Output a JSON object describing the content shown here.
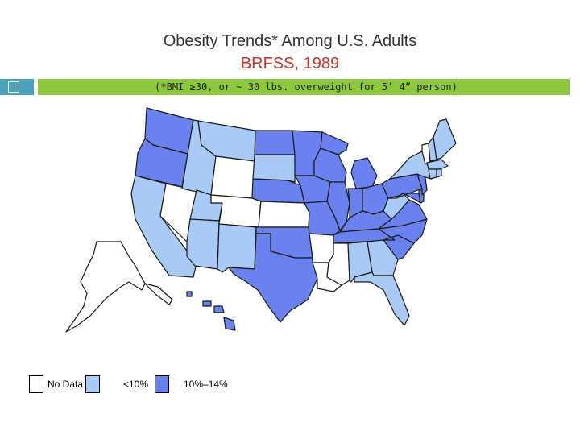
{
  "title": "Obesity Trends* Among U.S. Adults",
  "subtitle": "BRFSS, 1989",
  "footnote": "(*BMI ≥30, or ~ 30 lbs. overweight for 5’ 4” person)",
  "legend": [
    {
      "label": "No Data",
      "color": "#ffffff"
    },
    {
      "label": "<10%",
      "color": "#a8caf4"
    },
    {
      "label": "10%–14%",
      "color": "#6a82ee"
    }
  ],
  "colors": {
    "no_data": "#ffffff",
    "under_10": "#a8caf4",
    "10_14": "#6a82ee",
    "title_text": "#333333",
    "subtitle_text": "#c0392b",
    "bar_teal": "#4aa3b8",
    "bar_green": "#8dc63f"
  },
  "states": {
    "WA": "10_14",
    "OR": "10_14",
    "CA": "under_10",
    "NV": "no_data",
    "ID": "under_10",
    "MT": "under_10",
    "WY": "no_data",
    "UT": "under_10",
    "AZ": "under_10",
    "CO": "no_data",
    "NM": "under_10",
    "ND": "10_14",
    "SD": "under_10",
    "NE": "10_14",
    "KS": "no_data",
    "OK": "10_14",
    "TX": "10_14",
    "MN": "10_14",
    "IA": "10_14",
    "MO": "10_14",
    "AR": "no_data",
    "LA": "no_data",
    "WI": "10_14",
    "IL": "10_14",
    "MI": "10_14",
    "IN": "10_14",
    "OH": "10_14",
    "KY": "10_14",
    "TN": "10_14",
    "MS": "no_data",
    "AL": "under_10",
    "GA": "under_10",
    "FL": "under_10",
    "SC": "10_14",
    "NC": "10_14",
    "VA": "10_14",
    "WV": "under_10",
    "PA": "10_14",
    "NY": "under_10",
    "VT": "no_data",
    "NH": "under_10",
    "ME": "under_10",
    "MA": "under_10",
    "CT": "under_10",
    "RI": "under_10",
    "NJ": "10_14",
    "DE": "10_14",
    "MD": "10_14",
    "AK": "no_data",
    "HI": "10_14"
  }
}
